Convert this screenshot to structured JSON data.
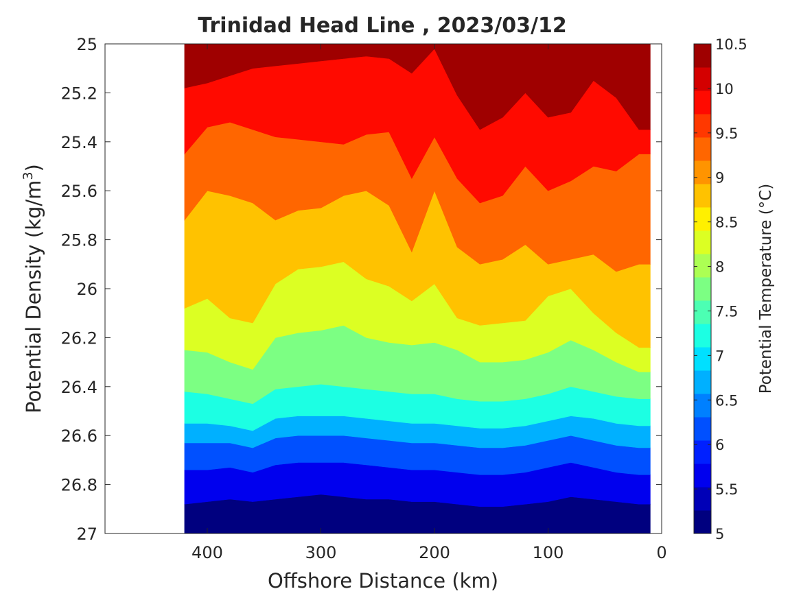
{
  "chart_data": {
    "type": "heatmap",
    "subtype": "filled-contour",
    "title": "Trinidad Head Line , 2023/03/12",
    "xlabel": "Offshore Distance (km)",
    "ylabel_main": "Potential Density (kg/m",
    "ylabel_sup": "3",
    "ylabel_close": ")",
    "colorbar_label": "Potential Temperature (°C)",
    "x_reversed": true,
    "y_reversed": true,
    "xlim": [
      490,
      0
    ],
    "ylim": [
      25,
      27
    ],
    "x_ticks": [
      400,
      300,
      200,
      100,
      0
    ],
    "y_ticks": [
      25,
      25.2,
      25.4,
      25.6,
      25.8,
      26,
      26.2,
      26.4,
      26.6,
      26.8,
      27
    ],
    "y_tick_labels": [
      "25",
      "25.2",
      "25.4",
      "25.6",
      "25.8",
      "26",
      "26.2",
      "26.4",
      "26.6",
      "26.8",
      "27"
    ],
    "colorbar_ticks": [
      5,
      5.5,
      6,
      6.5,
      7,
      7.5,
      8,
      8.5,
      9,
      9.5,
      10,
      10.5
    ],
    "colorbar_tick_labels": [
      "5",
      "5.5",
      "6",
      "6.5",
      "7",
      "7.5",
      "8",
      "8.5",
      "9",
      "9.5",
      "10",
      "10.5"
    ],
    "contour_levels": [
      5,
      5.25,
      5.5,
      5.75,
      6,
      6.25,
      6.5,
      6.75,
      7,
      7.25,
      7.5,
      7.75,
      8,
      8.25,
      8.5,
      8.75,
      9,
      9.25,
      9.5,
      9.75,
      10,
      10.25,
      10.5
    ],
    "colormap": "jet",
    "colormap_colors": [
      "#00007F",
      "#0000B7",
      "#0000EE",
      "#0020FF",
      "#0050FF",
      "#0080FF",
      "#00B0FF",
      "#00E0FF",
      "#1CFFE3",
      "#4CFFB3",
      "#7CFF83",
      "#ACFF53",
      "#DCFF23",
      "#FFF000",
      "#FFC200",
      "#FF9400",
      "#FF6600",
      "#FF3800",
      "#FF0A00",
      "#D40000",
      "#9F0000"
    ],
    "data_extent": {
      "x_min_km": 10,
      "x_max_km": 420,
      "density_min": 25,
      "density_max": 27
    },
    "x_stations_km": [
      420,
      400,
      380,
      360,
      340,
      320,
      300,
      280,
      260,
      240,
      220,
      200,
      180,
      160,
      140,
      120,
      100,
      80,
      60,
      40,
      20
    ],
    "isotherm_density": {
      "5.5": [
        26.88,
        26.87,
        26.86,
        26.87,
        26.86,
        26.85,
        26.84,
        26.85,
        26.86,
        26.86,
        26.87,
        26.87,
        26.88,
        26.89,
        26.89,
        26.88,
        26.87,
        26.85,
        26.86,
        26.87,
        26.88
      ],
      "6": [
        26.74,
        26.74,
        26.73,
        26.75,
        26.72,
        26.71,
        26.71,
        26.71,
        26.72,
        26.73,
        26.74,
        26.74,
        26.75,
        26.76,
        26.76,
        26.75,
        26.73,
        26.71,
        26.73,
        26.75,
        26.76
      ],
      "6.5": [
        26.63,
        26.63,
        26.63,
        26.65,
        26.61,
        26.6,
        26.6,
        26.6,
        26.61,
        26.62,
        26.63,
        26.63,
        26.64,
        26.65,
        26.65,
        26.64,
        26.62,
        26.6,
        26.62,
        26.64,
        26.65
      ],
      "7": [
        26.55,
        26.55,
        26.56,
        26.58,
        26.53,
        26.52,
        26.52,
        26.52,
        26.53,
        26.54,
        26.55,
        26.55,
        26.56,
        26.57,
        26.57,
        26.56,
        26.54,
        26.52,
        26.53,
        26.55,
        26.56
      ],
      "7.5": [
        26.42,
        26.43,
        26.45,
        26.47,
        26.41,
        26.4,
        26.39,
        26.4,
        26.41,
        26.42,
        26.43,
        26.43,
        26.45,
        26.46,
        26.46,
        26.45,
        26.43,
        26.4,
        26.42,
        26.44,
        26.45
      ],
      "8": [
        26.25,
        26.26,
        26.3,
        26.33,
        26.2,
        26.18,
        26.17,
        26.15,
        26.2,
        26.22,
        26.23,
        26.22,
        26.25,
        26.3,
        26.3,
        26.29,
        26.26,
        26.21,
        26.25,
        26.3,
        26.34
      ],
      "8.5": [
        26.08,
        26.04,
        26.12,
        26.14,
        25.98,
        25.92,
        25.91,
        25.89,
        25.96,
        25.99,
        26.05,
        25.98,
        26.12,
        26.15,
        26.14,
        26.13,
        26.03,
        26.0,
        26.1,
        26.18,
        26.24
      ],
      "9": [
        25.72,
        25.6,
        25.62,
        25.65,
        25.72,
        25.68,
        25.67,
        25.62,
        25.6,
        25.66,
        25.85,
        25.6,
        25.83,
        25.9,
        25.88,
        25.82,
        25.9,
        25.88,
        25.86,
        25.93,
        25.9
      ],
      "9.5": [
        25.45,
        25.34,
        25.32,
        25.35,
        25.38,
        25.39,
        25.4,
        25.41,
        25.37,
        25.36,
        25.55,
        25.38,
        25.55,
        25.65,
        25.62,
        25.5,
        25.6,
        25.56,
        25.5,
        25.52,
        25.45
      ],
      "10": [
        25.18,
        25.16,
        25.13,
        25.1,
        25.09,
        25.08,
        25.07,
        25.06,
        25.05,
        25.06,
        25.12,
        25.02,
        25.21,
        25.35,
        25.3,
        25.2,
        25.3,
        25.28,
        25.15,
        25.22,
        25.35
      ]
    }
  }
}
